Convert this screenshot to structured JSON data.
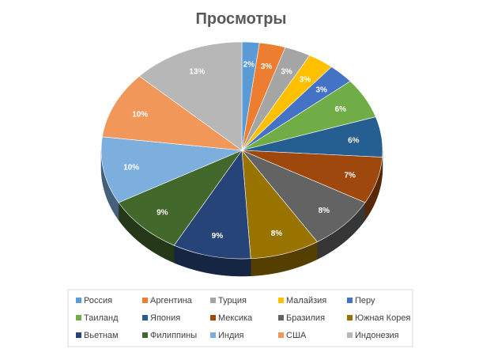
{
  "chart_data": {
    "type": "pie",
    "title": "Просмотры",
    "categories": [
      "Россия",
      "Аргентина",
      "Турция",
      "Малайзия",
      "Перу",
      "Таиланд",
      "Япония",
      "Мексика",
      "Бразилия",
      "Южная Корея",
      "Вьетнам",
      "Филиппины",
      "Индия",
      "США",
      "Индонезия"
    ],
    "values": [
      2,
      3,
      3,
      3,
      3,
      6,
      6,
      7,
      8,
      8,
      9,
      9,
      10,
      10,
      13
    ],
    "data_labels": [
      "2%",
      "3%",
      "3%",
      "3%",
      "3%",
      "6%",
      "6%",
      "7%",
      "8%",
      "8%",
      "9%",
      "9%",
      "10%",
      "10%",
      "13%"
    ],
    "colors": [
      "#5B9BD5",
      "#ED7D31",
      "#A5A5A5",
      "#FFC000",
      "#4472C4",
      "#70AD47",
      "#255E91",
      "#9E480E",
      "#636363",
      "#997300",
      "#264478",
      "#43682B",
      "#7CAFDD",
      "#F1975A",
      "#B7B7B7"
    ],
    "legend_position": "bottom",
    "style": "3d-pie",
    "grid": false
  }
}
